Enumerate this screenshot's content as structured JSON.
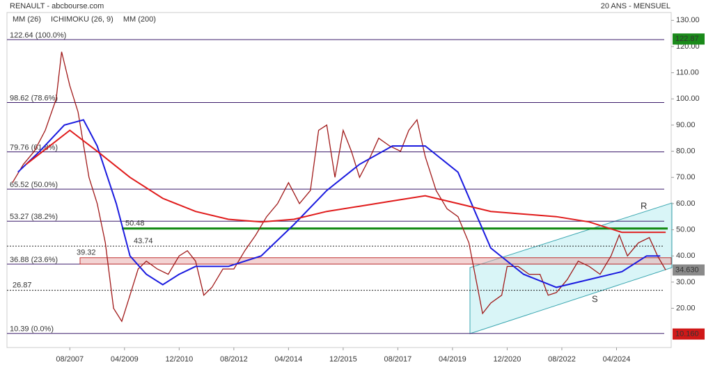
{
  "chart_data": {
    "type": "line",
    "title": "RENAULT - abcbourse.com",
    "subtitle": "20 ANS - MENSUEL",
    "xlim": [
      "2005-09",
      "2025-12"
    ],
    "xticks": [
      {
        "value": "2007-08",
        "label": "08/2007"
      },
      {
        "value": "2009-04",
        "label": "04/2009"
      },
      {
        "value": "2010-12",
        "label": "12/2010"
      },
      {
        "value": "2012-08",
        "label": "08/2012"
      },
      {
        "value": "2014-04",
        "label": "04/2014"
      },
      {
        "value": "2015-12",
        "label": "12/2015"
      },
      {
        "value": "2017-08",
        "label": "08/2017"
      },
      {
        "value": "2019-04",
        "label": "04/2019"
      },
      {
        "value": "2020-12",
        "label": "12/2020"
      },
      {
        "value": "2022-08",
        "label": "08/2022"
      },
      {
        "value": "2024-04",
        "label": "04/2024"
      }
    ],
    "ylim": [
      5,
      133
    ],
    "yticks": [
      {
        "value": 20,
        "label": "20.00"
      },
      {
        "value": 30,
        "label": "30.00"
      },
      {
        "value": 40,
        "label": "40.00"
      },
      {
        "value": 50,
        "label": "50.00"
      },
      {
        "value": 60,
        "label": "60.00"
      },
      {
        "value": 70,
        "label": "70.00"
      },
      {
        "value": 80,
        "label": "80.00"
      },
      {
        "value": 90,
        "label": "90.00"
      },
      {
        "value": 100,
        "label": "100.00"
      },
      {
        "value": 110,
        "label": "110.00"
      },
      {
        "value": 120,
        "label": "120.00"
      },
      {
        "value": 130,
        "label": "130.00"
      }
    ],
    "series": [
      {
        "name": "RENAULT",
        "color": "#a01818",
        "x": [
          "2005-11",
          "2006-03",
          "2006-07",
          "2006-11",
          "2007-03",
          "2007-05",
          "2007-08",
          "2007-11",
          "2008-03",
          "2008-06",
          "2008-09",
          "2008-12",
          "2009-03",
          "2009-06",
          "2009-09",
          "2009-12",
          "2010-04",
          "2010-08",
          "2010-12",
          "2011-03",
          "2011-06",
          "2011-09",
          "2011-12",
          "2012-04",
          "2012-08",
          "2012-12",
          "2013-04",
          "2013-08",
          "2013-12",
          "2014-04",
          "2014-08",
          "2014-12",
          "2015-03",
          "2015-06",
          "2015-09",
          "2015-12",
          "2016-03",
          "2016-06",
          "2016-10",
          "2017-01",
          "2017-05",
          "2017-09",
          "2017-12",
          "2018-03",
          "2018-06",
          "2018-10",
          "2019-02",
          "2019-06",
          "2019-10",
          "2020-03",
          "2020-06",
          "2020-10",
          "2020-12",
          "2021-04",
          "2021-08",
          "2021-12",
          "2022-03",
          "2022-06",
          "2022-10",
          "2023-02",
          "2023-06",
          "2023-10",
          "2024-02",
          "2024-05",
          "2024-08",
          "2024-12",
          "2025-04",
          "2025-07",
          "2025-10"
        ],
        "values": [
          68,
          75,
          80,
          88,
          100,
          118,
          105,
          95,
          70,
          60,
          45,
          20,
          15,
          25,
          35,
          38,
          35,
          33,
          40,
          42,
          38,
          25,
          28,
          35,
          35,
          42,
          48,
          55,
          60,
          68,
          60,
          65,
          88,
          90,
          70,
          88,
          80,
          70,
          78,
          85,
          82,
          80,
          88,
          92,
          78,
          65,
          58,
          55,
          45,
          18,
          22,
          25,
          36,
          36,
          33,
          33,
          25,
          26,
          31,
          38,
          36,
          33,
          40,
          48,
          40,
          45,
          47,
          40,
          34.63
        ]
      },
      {
        "name": "MM (26)",
        "color": "#1a1adf",
        "x": [
          "2006-01",
          "2006-09",
          "2007-06",
          "2008-01",
          "2008-06",
          "2009-01",
          "2009-06",
          "2009-12",
          "2010-06",
          "2010-12",
          "2011-06",
          "2012-06",
          "2013-06",
          "2014-06",
          "2015-06",
          "2016-06",
          "2017-06",
          "2018-06",
          "2019-06",
          "2020-01",
          "2020-06",
          "2021-06",
          "2022-06",
          "2023-06",
          "2024-06",
          "2025-03",
          "2025-08"
        ],
        "values": [
          72,
          80,
          90,
          92,
          82,
          60,
          40,
          33,
          29,
          33,
          36,
          36,
          40,
          52,
          65,
          75,
          82,
          82,
          72,
          55,
          43,
          33,
          28,
          31,
          34,
          40,
          40
        ]
      },
      {
        "name": "ICHIMOKU (26, 9)",
        "color": "#2a6ad0",
        "x": [],
        "values": []
      },
      {
        "name": "MM (200)",
        "color": "#e01a1a",
        "x": [
          "2006-04",
          "2007-08",
          "2008-06",
          "2009-06",
          "2010-06",
          "2011-06",
          "2012-06",
          "2013-06",
          "2014-06",
          "2015-06",
          "2016-06",
          "2017-06",
          "2018-06",
          "2019-06",
          "2020-06",
          "2021-06",
          "2022-06",
          "2023-06",
          "2024-06",
          "2025-10"
        ],
        "values": [
          75,
          88,
          80,
          70,
          62,
          57,
          54,
          53,
          54,
          57,
          59,
          61,
          63,
          60,
          57,
          56,
          55,
          53,
          49,
          49
        ]
      }
    ],
    "levels": [
      {
        "value": 122.64,
        "label": "122.64  (100.0%)",
        "style": "fib"
      },
      {
        "value": 98.62,
        "label": "98.62  (78.6%)",
        "style": "fib"
      },
      {
        "value": 79.76,
        "label": "79.76  (61.8%)",
        "style": "fib"
      },
      {
        "value": 65.52,
        "label": "65.52  (50.0%)",
        "style": "fib"
      },
      {
        "value": 53.27,
        "label": "53.27  (38.2%)",
        "style": "fib"
      },
      {
        "value": 36.88,
        "label": "36.88  (23.6%)",
        "style": "fib"
      },
      {
        "value": 10.39,
        "label": "10.39  (0.0%)",
        "style": "fib"
      },
      {
        "value": 26.87,
        "label": "26.87",
        "style": "dotted"
      },
      {
        "value": 43.74,
        "label": "43.74",
        "style": "dotted"
      },
      {
        "value": 50.48,
        "label": "50.48",
        "style": "green"
      },
      {
        "value": 39.32,
        "label": "39.32",
        "style": "red"
      }
    ],
    "price_tags": [
      {
        "value": 122.87,
        "label": "122.87",
        "color": "#1a8a1a"
      },
      {
        "value": 34.63,
        "label": "34.630",
        "color": "#8a8a8a"
      },
      {
        "value": 10.16,
        "label": "10.160",
        "color": "#d01818"
      }
    ],
    "annotations": [
      "R",
      "S"
    ]
  }
}
